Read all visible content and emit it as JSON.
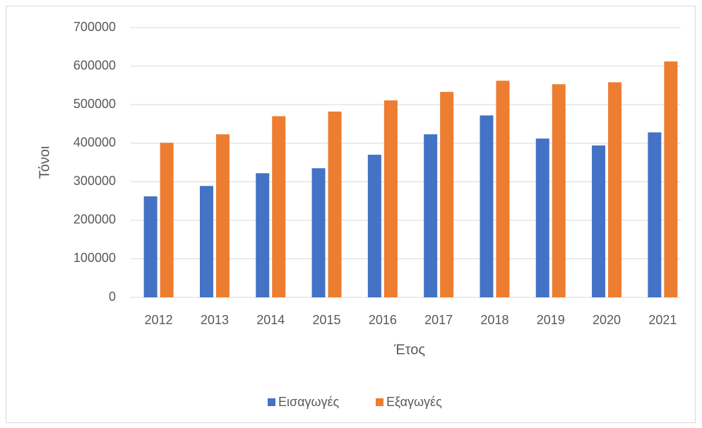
{
  "chart_data": {
    "type": "bar",
    "categories": [
      "2012",
      "2013",
      "2014",
      "2015",
      "2016",
      "2017",
      "2018",
      "2019",
      "2020",
      "2021"
    ],
    "series": [
      {
        "name": "Εισαγωγές",
        "color": "#4472c4",
        "values": [
          262000,
          289000,
          322000,
          335000,
          370000,
          423000,
          472000,
          412000,
          394000,
          428000
        ]
      },
      {
        "name": "Εξαγωγές",
        "color": "#ed7d31",
        "values": [
          401000,
          423000,
          470000,
          482000,
          511000,
          533000,
          562000,
          553000,
          558000,
          612000
        ]
      }
    ],
    "xlabel": "Έτος",
    "ylabel": "Τόνοι",
    "ylim": [
      0,
      700000
    ],
    "yticks": [
      0,
      100000,
      200000,
      300000,
      400000,
      500000,
      600000,
      700000
    ],
    "grid": true,
    "legend": "bottom"
  }
}
